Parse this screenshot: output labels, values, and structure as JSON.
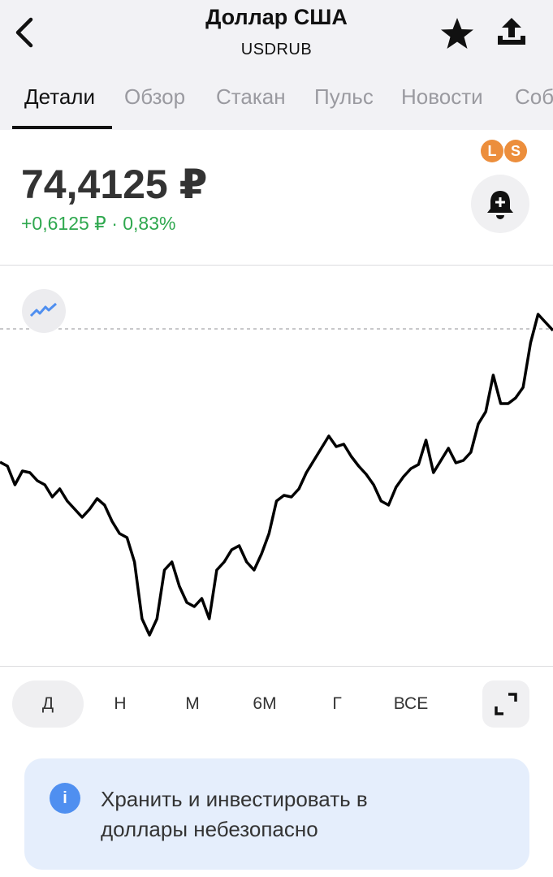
{
  "header": {
    "title": "Доллар США",
    "subtitle": "USDRUB"
  },
  "tabs": [
    "Детали",
    "Обзор",
    "Стакан",
    "Пульс",
    "Новости",
    "Соб"
  ],
  "quote": {
    "price": "74,4125 ₽",
    "change": "+0,6125 ₽ · 0,83%"
  },
  "badges": [
    "L",
    "S"
  ],
  "chart_data": {
    "type": "line",
    "color": "#000000",
    "reference_line": 74.41,
    "ylim": [
      73.58,
      74.56
    ],
    "values": [
      74.082,
      74.072,
      74.026,
      74.06,
      74.056,
      74.036,
      74.026,
      73.996,
      74.016,
      73.986,
      73.966,
      73.946,
      73.966,
      73.992,
      73.976,
      73.936,
      73.906,
      73.896,
      73.836,
      73.696,
      73.656,
      73.696,
      73.816,
      73.836,
      73.776,
      73.736,
      73.726,
      73.746,
      73.696,
      73.816,
      73.836,
      73.866,
      73.876,
      73.836,
      73.816,
      73.856,
      73.906,
      73.986,
      74.0,
      73.996,
      74.016,
      74.056,
      74.086,
      74.116,
      74.146,
      74.12,
      74.126,
      74.096,
      74.072,
      74.052,
      74.026,
      73.986,
      73.976,
      74.02,
      74.046,
      74.066,
      74.076,
      74.136,
      74.056,
      74.086,
      74.116,
      74.08,
      74.086,
      74.106,
      74.176,
      74.206,
      74.296,
      74.226,
      74.226,
      74.24,
      74.266,
      74.376,
      74.446,
      74.426,
      74.406
    ]
  },
  "periods": [
    "Д",
    "Н",
    "М",
    "6М",
    "Г",
    "ВСЕ"
  ],
  "notice": "Хранить и инвестировать в доллары небезопасно"
}
